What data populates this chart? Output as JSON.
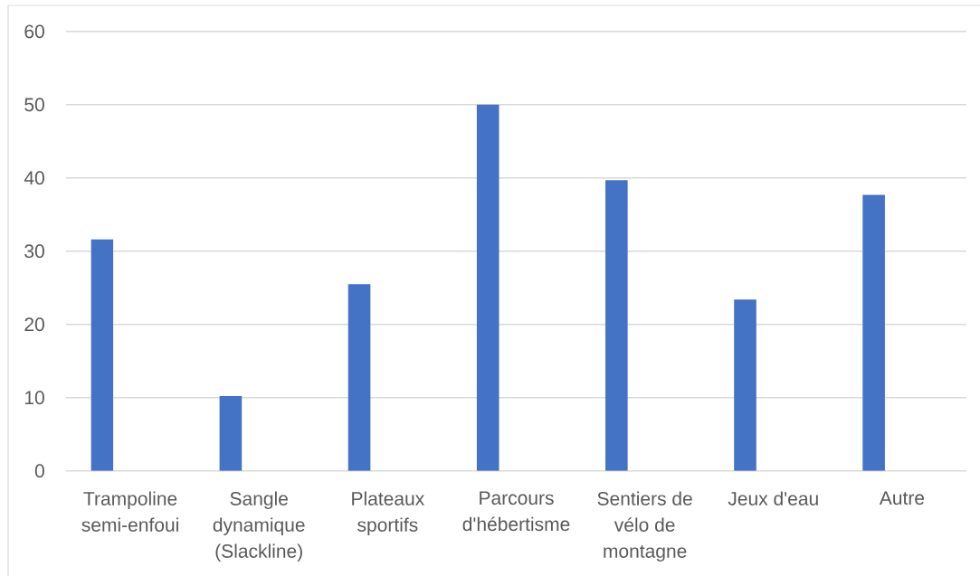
{
  "chart_data": {
    "type": "bar",
    "categories": [
      "Trampoline semi-enfoui",
      "Sangle dynamique (Slackline)",
      "Plateaux sportifs",
      "Parcours d'hébertisme",
      "Sentiers de vélo de montagne",
      "Jeux d'eau",
      "Autre"
    ],
    "values": [
      31.6,
      10.2,
      25.5,
      50,
      39.7,
      23.4,
      37.7
    ],
    "color": "#4472c4",
    "ylim": [
      0,
      60
    ],
    "yticks": [
      0,
      10,
      20,
      30,
      40,
      50,
      60
    ],
    "grid": "y"
  }
}
